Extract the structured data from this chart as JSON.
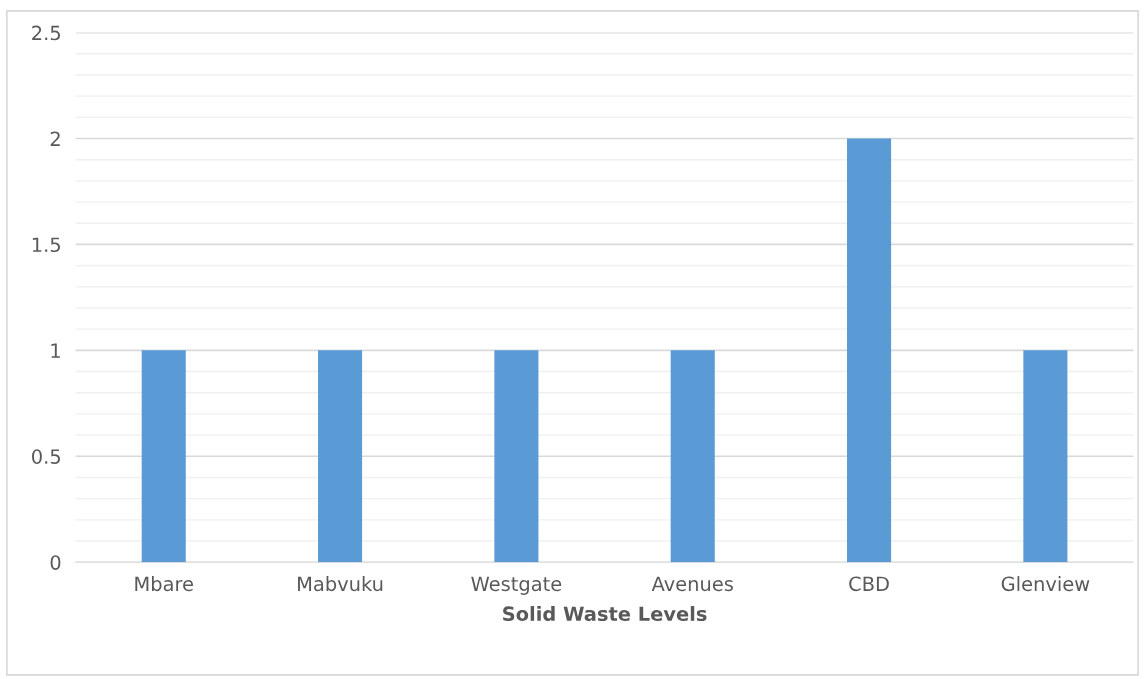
{
  "chart_data": {
    "type": "bar",
    "xlabel": "Solid Waste Levels",
    "categories": [
      "Mbare",
      "Mabvuku",
      "Westgate",
      "Avenues",
      "CBD",
      "Glenview"
    ],
    "values": [
      1,
      1,
      1,
      1,
      2,
      1
    ],
    "color": "#5b9bd5",
    "ylim": [
      0,
      2.5
    ],
    "yticks": [
      0,
      {
        "value": 0.5,
        "label": "0.5"
      },
      1,
      {
        "value": 1.5,
        "label": "1.5"
      },
      2,
      {
        "value": 2.5,
        "label": "2.5"
      }
    ],
    "grid": "y"
  }
}
